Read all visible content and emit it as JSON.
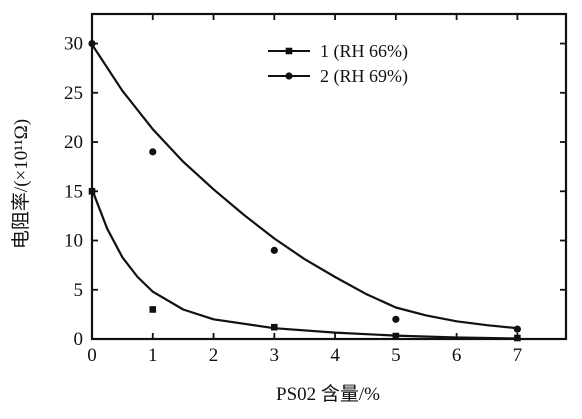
{
  "chart_data": {
    "type": "scatter",
    "title": "",
    "xlabel": "PS02 含量/%",
    "ylabel": "电阻率/(×10¹¹Ω)",
    "xlim": [
      0,
      7.8
    ],
    "ylim": [
      0,
      33
    ],
    "xticks": [
      0,
      1,
      2,
      3,
      4,
      5,
      6,
      7
    ],
    "yticks": [
      0,
      5,
      10,
      15,
      20,
      25,
      30
    ],
    "grid": false,
    "legend_position": "top-right",
    "series": [
      {
        "name": "1 (RH 66%)",
        "marker": "square",
        "color": "#111111",
        "points": [
          {
            "x": 0,
            "y": 15
          },
          {
            "x": 1,
            "y": 3
          },
          {
            "x": 3,
            "y": 1.2
          },
          {
            "x": 5,
            "y": 0.3
          },
          {
            "x": 7,
            "y": 0.1
          }
        ],
        "fit": [
          {
            "x": 0,
            "y": 15.2
          },
          {
            "x": 0.25,
            "y": 11.2
          },
          {
            "x": 0.5,
            "y": 8.3
          },
          {
            "x": 0.75,
            "y": 6.3
          },
          {
            "x": 1,
            "y": 4.8
          },
          {
            "x": 1.5,
            "y": 3.0
          },
          {
            "x": 2,
            "y": 2.0
          },
          {
            "x": 3,
            "y": 1.1
          },
          {
            "x": 4,
            "y": 0.65
          },
          {
            "x": 5,
            "y": 0.35
          },
          {
            "x": 6,
            "y": 0.15
          },
          {
            "x": 7,
            "y": 0.05
          }
        ]
      },
      {
        "name": "2 (RH 69%)",
        "marker": "circle",
        "color": "#111111",
        "points": [
          {
            "x": 0,
            "y": 30
          },
          {
            "x": 1,
            "y": 19
          },
          {
            "x": 3,
            "y": 9
          },
          {
            "x": 5,
            "y": 2
          },
          {
            "x": 7,
            "y": 1
          }
        ],
        "fit": [
          {
            "x": 0,
            "y": 29.9
          },
          {
            "x": 0.5,
            "y": 25.2
          },
          {
            "x": 1,
            "y": 21.3
          },
          {
            "x": 1.5,
            "y": 18.0
          },
          {
            "x": 2,
            "y": 15.2
          },
          {
            "x": 2.5,
            "y": 12.6
          },
          {
            "x": 3,
            "y": 10.2
          },
          {
            "x": 3.5,
            "y": 8.1
          },
          {
            "x": 4,
            "y": 6.3
          },
          {
            "x": 4.5,
            "y": 4.6
          },
          {
            "x": 5,
            "y": 3.2
          },
          {
            "x": 5.5,
            "y": 2.4
          },
          {
            "x": 6,
            "y": 1.8
          },
          {
            "x": 6.5,
            "y": 1.4
          },
          {
            "x": 7,
            "y": 1.1
          }
        ]
      }
    ]
  }
}
